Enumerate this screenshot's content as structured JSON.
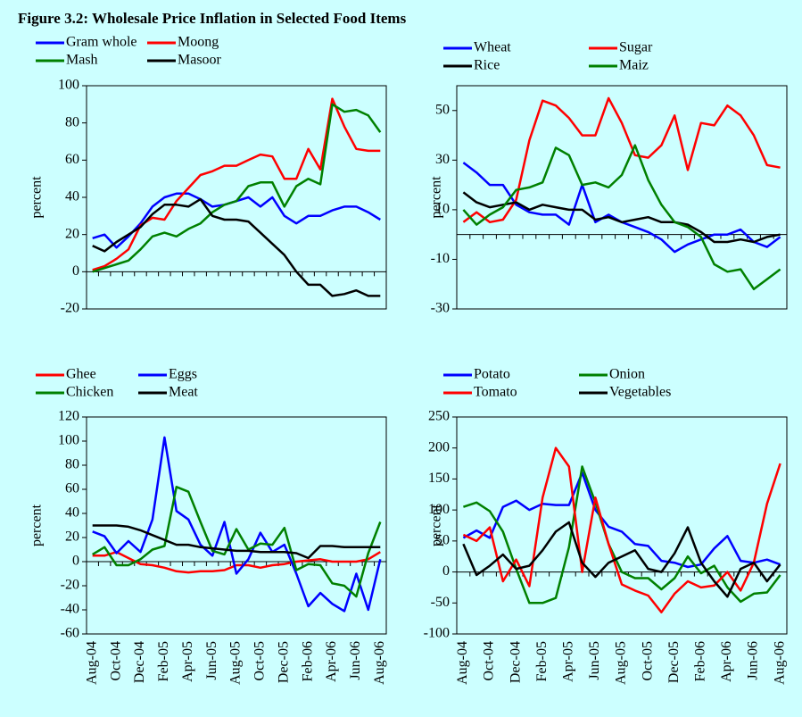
{
  "title": "Figure 3.2: Wholesale Price Inflation in Selected Food Items",
  "chart_data": [
    {
      "type": "line",
      "ylabel": "percent",
      "ylim": [
        -20,
        100
      ],
      "yticks": [
        -20,
        0,
        20,
        40,
        60,
        80,
        100
      ],
      "categories": [
        null,
        null,
        null,
        null,
        null,
        null,
        null,
        null,
        null,
        null,
        null,
        null,
        null,
        null,
        null,
        null,
        null,
        null,
        null,
        null,
        null,
        null,
        null,
        null,
        null
      ],
      "series": [
        {
          "name": "Gram whole",
          "color": "#0000ff",
          "values": [
            18,
            20,
            13,
            19,
            26,
            35,
            40,
            42,
            42,
            39,
            35,
            36,
            38,
            40,
            35,
            40,
            30,
            26,
            30,
            30,
            33,
            35,
            35,
            32,
            28
          ]
        },
        {
          "name": "Moong",
          "color": "#ff0000",
          "values": [
            1,
            3,
            7,
            12,
            25,
            29,
            28,
            38,
            45,
            52,
            54,
            57,
            57,
            60,
            63,
            62,
            50,
            50,
            66,
            55,
            93,
            78,
            66,
            65,
            65
          ]
        },
        {
          "name": "Mash",
          "color": "#008000",
          "values": [
            0,
            2,
            4,
            6,
            12,
            19,
            21,
            19,
            23,
            26,
            32,
            36,
            38,
            46,
            48,
            48,
            35,
            46,
            50,
            47,
            90,
            86,
            87,
            84,
            75
          ]
        },
        {
          "name": "Masoor",
          "color": "#000000",
          "values": [
            14,
            11,
            16,
            20,
            24,
            31,
            36,
            36,
            35,
            39,
            30,
            28,
            28,
            27,
            21,
            15,
            9,
            0,
            -7,
            -7,
            -13,
            -12,
            -10,
            -13,
            -13
          ]
        }
      ]
    },
    {
      "type": "line",
      "ylabel": "percent",
      "ylim": [
        -30,
        60
      ],
      "yticks": [
        -30,
        -10,
        10,
        30,
        50
      ],
      "categories": [
        null,
        null,
        null,
        null,
        null,
        null,
        null,
        null,
        null,
        null,
        null,
        null,
        null,
        null,
        null,
        null,
        null,
        null,
        null,
        null,
        null,
        null,
        null,
        null,
        null
      ],
      "series": [
        {
          "name": "Wheat",
          "color": "#0000ff",
          "values": [
            29,
            25,
            20,
            20,
            12,
            9,
            8,
            8,
            4,
            20,
            5,
            8,
            5,
            3,
            1,
            -2,
            -7,
            -4,
            -2,
            0,
            0,
            2,
            -3,
            -5,
            -1
          ]
        },
        {
          "name": "Sugar",
          "color": "#ff0000",
          "values": [
            5,
            9,
            5,
            6,
            14,
            38,
            54,
            52,
            47,
            40,
            40,
            55,
            45,
            32,
            31,
            36,
            48,
            26,
            45,
            44,
            52,
            48,
            40,
            28,
            27
          ]
        },
        {
          "name": "Rice",
          "color": "#000000",
          "values": [
            17,
            13,
            11,
            12,
            13,
            10,
            12,
            11,
            10,
            10,
            6,
            7,
            5,
            6,
            7,
            5,
            5,
            4,
            1,
            -3,
            -3,
            -2,
            -3,
            -1,
            0
          ]
        },
        {
          "name": "Maiz",
          "color": "#008000",
          "values": [
            10,
            4,
            8,
            11,
            18,
            19,
            21,
            35,
            32,
            20,
            21,
            19,
            24,
            36,
            22,
            12,
            5,
            3,
            -1,
            -12,
            -15,
            -14,
            -22,
            -18,
            -14
          ]
        }
      ]
    },
    {
      "type": "line",
      "ylabel": "percent",
      "ylim": [
        -60,
        120
      ],
      "yticks": [
        -60,
        -40,
        -20,
        0,
        20,
        40,
        60,
        80,
        100,
        120
      ],
      "categories": [
        "Aug-04",
        null,
        "Oct-04",
        null,
        "Dec-04",
        null,
        "Feb-05",
        null,
        "Apr-05",
        null,
        "Jun-05",
        null,
        "Aug-05",
        null,
        "Oct-05",
        null,
        "Dec-05",
        null,
        "Feb-06",
        null,
        "Apr-06",
        null,
        "Jun-06",
        null,
        "Aug-06"
      ],
      "series": [
        {
          "name": "Ghee",
          "color": "#ff0000",
          "values": [
            5,
            5,
            8,
            3,
            -2,
            -3,
            -5,
            -8,
            -9,
            -8,
            -8,
            -7,
            -3,
            -3,
            -5,
            -3,
            -2,
            0,
            1,
            2,
            0,
            0,
            0,
            2,
            8
          ]
        },
        {
          "name": "Eggs",
          "color": "#0000ff",
          "values": [
            25,
            21,
            7,
            17,
            8,
            35,
            103,
            42,
            35,
            14,
            5,
            33,
            -10,
            2,
            24,
            8,
            14,
            -10,
            -37,
            -26,
            -35,
            -41,
            -10,
            -40,
            2
          ]
        },
        {
          "name": "Chicken",
          "color": "#008000",
          "values": [
            6,
            12,
            -3,
            -3,
            2,
            10,
            13,
            62,
            58,
            33,
            9,
            6,
            27,
            10,
            15,
            14,
            28,
            -7,
            -2,
            -3,
            -18,
            -20,
            -29,
            7,
            33
          ]
        },
        {
          "name": "Meat",
          "color": "#000000",
          "values": [
            30,
            30,
            30,
            29,
            26,
            22,
            18,
            14,
            14,
            12,
            11,
            10,
            9,
            9,
            8,
            8,
            8,
            7,
            3,
            13,
            13,
            12,
            12,
            12,
            12
          ]
        }
      ]
    },
    {
      "type": "line",
      "ylabel": "percent",
      "ylim": [
        -100,
        250
      ],
      "yticks": [
        -100,
        -50,
        0,
        50,
        100,
        150,
        200,
        250
      ],
      "categories": [
        "Aug-04",
        null,
        "Oct-04",
        null,
        "Dec-04",
        null,
        "Feb-05",
        null,
        "Apr-05",
        null,
        "Jun-05",
        null,
        "Aug-05",
        null,
        "Oct-05",
        null,
        "Dec-05",
        null,
        "Feb-06",
        null,
        "Apr-06",
        null,
        "Jun-06",
        null,
        "Aug-06"
      ],
      "series": [
        {
          "name": "Potato",
          "color": "#0000ff",
          "values": [
            55,
            67,
            55,
            105,
            115,
            100,
            110,
            108,
            108,
            160,
            100,
            73,
            65,
            45,
            42,
            18,
            15,
            8,
            12,
            38,
            58,
            18,
            15,
            20,
            12
          ]
        },
        {
          "name": "Onion",
          "color": "#008000",
          "values": [
            105,
            112,
            98,
            65,
            5,
            -50,
            -50,
            -42,
            40,
            170,
            112,
            45,
            0,
            -10,
            -10,
            -28,
            -10,
            25,
            -2,
            10,
            -25,
            -48,
            -35,
            -33,
            -5
          ]
        },
        {
          "name": "Tomato",
          "color": "#ff0000",
          "values": [
            60,
            50,
            72,
            -15,
            20,
            -23,
            120,
            200,
            170,
            0,
            120,
            45,
            -20,
            -30,
            -38,
            -65,
            -35,
            -15,
            -25,
            -22,
            0,
            -30,
            15,
            110,
            175
          ]
        },
        {
          "name": "Vegetables",
          "color": "#000000",
          "values": [
            45,
            -5,
            10,
            28,
            5,
            10,
            35,
            65,
            80,
            15,
            -8,
            15,
            25,
            35,
            5,
            0,
            30,
            72,
            15,
            -15,
            -40,
            5,
            15,
            -15,
            12
          ]
        }
      ]
    }
  ]
}
